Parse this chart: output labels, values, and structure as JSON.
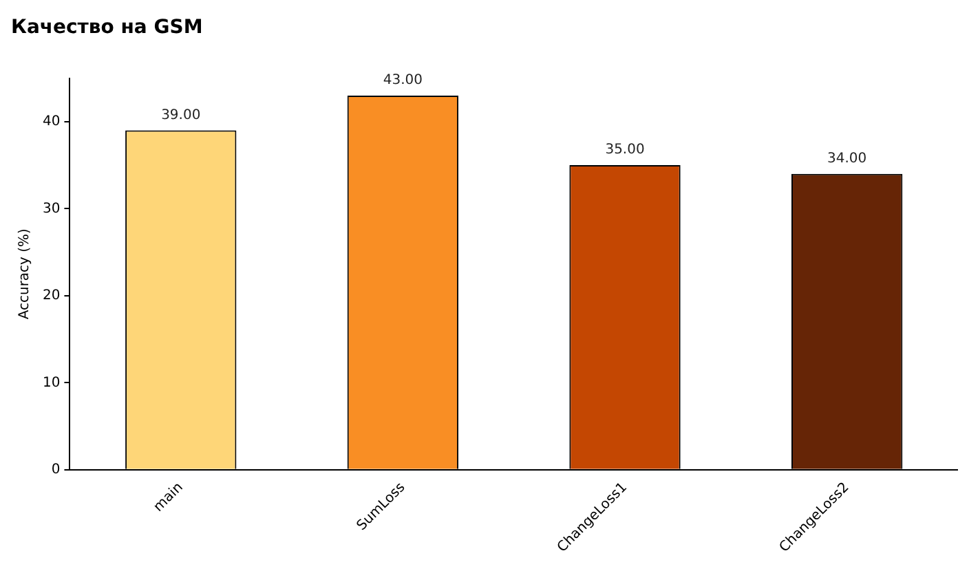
{
  "chart_data": {
    "type": "bar",
    "title": "Качество на GSM",
    "ylabel": "Accuracy (%)",
    "categories": [
      "main",
      "SumLoss",
      "ChangeLoss1",
      "ChangeLoss2"
    ],
    "values": [
      39,
      43,
      35,
      34
    ],
    "colors": [
      "#fed678",
      "#f98e24",
      "#c44702",
      "#662506"
    ],
    "value_labels": [
      "39.00",
      "43.00",
      "35.00",
      "34.00"
    ],
    "ylim": [
      0,
      45
    ],
    "yticks": [
      0,
      10,
      20,
      30,
      40
    ],
    "grid": false,
    "legend": false
  }
}
